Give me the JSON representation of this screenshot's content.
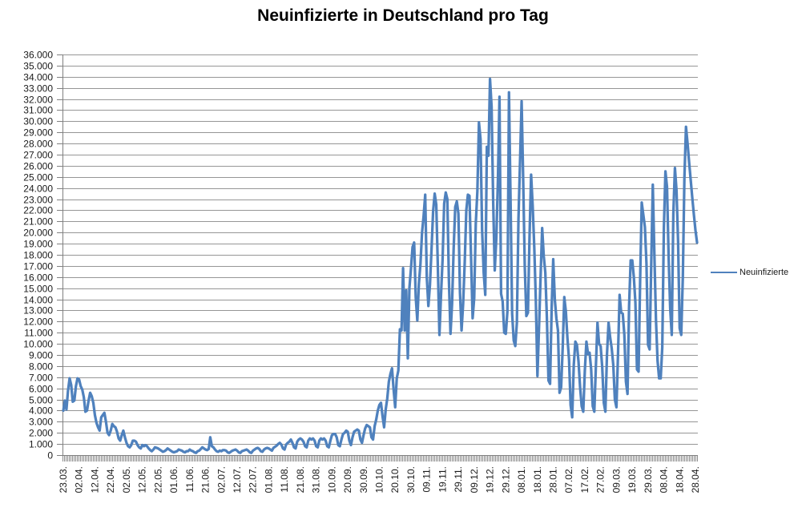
{
  "chart_data": {
    "type": "line",
    "title": "Neuinfizierte in Deutschland pro Tag",
    "xlabel": "",
    "ylabel": "",
    "ylim": [
      0,
      36000
    ],
    "y_gridline_step": 1000,
    "grid": true,
    "legend": {
      "position": "right",
      "entries": [
        "Neuinfizierte"
      ]
    },
    "y_tick_labels": [
      "36.000",
      "35.000",
      "34.000",
      "33.000",
      "32.000",
      "31.000",
      "30.000",
      "29.000",
      "28.000",
      "27.000",
      "26.000",
      "25.000",
      "24.000",
      "23.000",
      "22.000",
      "21.000",
      "20.000",
      "19.000",
      "18.000",
      "17.000",
      "16.000",
      "15.000",
      "14.000",
      "13.000",
      "12.000",
      "11.000",
      "10.000",
      "9.000",
      "8.000",
      "7.000",
      "6.000",
      "5.000",
      "4.000",
      "3.000",
      "2.000",
      "1.000",
      "0"
    ],
    "x_tick_labels": [
      "23.03.",
      "02.04.",
      "12.04.",
      "22.04.",
      "02.05.",
      "12.05.",
      "22.05.",
      "01.06.",
      "11.06.",
      "21.06.",
      "02.07.",
      "12.07.",
      "22.07.",
      "01.08.",
      "11.08.",
      "21.08.",
      "31.08.",
      "10.09.",
      "20.09.",
      "30.09.",
      "10.10.",
      "20.10.",
      "30.10.",
      "09.11.",
      "19.11.",
      "29.11.",
      "09.12.",
      "19.12.",
      "29.12.",
      "08.01.",
      "18.01.",
      "28.01.",
      "07.02.",
      "17.02.",
      "27.02.",
      "09.03.",
      "19.03.",
      "29.03.",
      "08.04.",
      "18.04.",
      "28.04."
    ],
    "x_tick_every_n_points": 10,
    "series": [
      {
        "name": "Neuinfizierte",
        "color": "#4F81BD",
        "values": [
          4000,
          4900,
          4100,
          5800,
          6900,
          6300,
          4800,
          4900,
          6200,
          6900,
          6800,
          6200,
          5900,
          5200,
          3900,
          4000,
          4900,
          5600,
          5300,
          4700,
          3600,
          2900,
          2500,
          2200,
          3400,
          3600,
          3800,
          3000,
          2000,
          1800,
          2200,
          2800,
          2600,
          2500,
          2100,
          1500,
          1300,
          1800,
          2200,
          1600,
          1100,
          800,
          700,
          900,
          1300,
          1300,
          1200,
          900,
          700,
          600,
          900,
          800,
          900,
          800,
          600,
          450,
          350,
          500,
          700,
          650,
          600,
          500,
          400,
          300,
          350,
          450,
          600,
          500,
          400,
          300,
          250,
          300,
          350,
          500,
          450,
          400,
          300,
          250,
          350,
          350,
          500,
          400,
          350,
          250,
          200,
          350,
          400,
          550,
          700,
          600,
          500,
          450,
          550,
          1600,
          800,
          700,
          500,
          350,
          300,
          400,
          350,
          450,
          450,
          400,
          250,
          200,
          300,
          400,
          450,
          500,
          400,
          250,
          200,
          350,
          400,
          450,
          500,
          400,
          250,
          200,
          400,
          500,
          600,
          650,
          550,
          350,
          300,
          500,
          600,
          650,
          600,
          500,
          400,
          650,
          750,
          850,
          1000,
          1100,
          950,
          600,
          500,
          950,
          1100,
          1200,
          1400,
          1100,
          700,
          600,
          1200,
          1400,
          1500,
          1400,
          1200,
          800,
          700,
          1300,
          1500,
          1400,
          1500,
          1300,
          800,
          700,
          1300,
          1500,
          1400,
          1500,
          1300,
          800,
          700,
          1300,
          1800,
          1900,
          1900,
          1600,
          900,
          800,
          1400,
          1900,
          2000,
          2200,
          2100,
          1300,
          900,
          1600,
          2100,
          2200,
          2300,
          2200,
          1400,
          1100,
          1800,
          2400,
          2700,
          2600,
          2500,
          1600,
          1400,
          2600,
          3200,
          4000,
          4500,
          4700,
          3500,
          2500,
          4100,
          5100,
          6600,
          7300,
          7800,
          5900,
          4300,
          6900,
          7600,
          11300,
          11200,
          16800,
          11200,
          14800,
          8700,
          15000,
          16800,
          18700,
          19100,
          14200,
          12100,
          15400,
          17200,
          20000,
          21500,
          23400,
          16000,
          13400,
          15300,
          18500,
          21900,
          23500,
          22500,
          16900,
          10800,
          14400,
          17600,
          22600,
          23600,
          23000,
          15700,
          10900,
          13600,
          18600,
          22300,
          22800,
          21700,
          14600,
          11200,
          13600,
          17300,
          22000,
          23400,
          23300,
          17800,
          12300,
          14100,
          20800,
          23700,
          29900,
          28400,
          20200,
          16400,
          14400,
          27700,
          26900,
          33800,
          31300,
          22800,
          16600,
          19500,
          24700,
          32200,
          14500,
          13800,
          11000,
          10900,
          12900,
          32600,
          22900,
          12700,
          10300,
          9800,
          11900,
          21200,
          26400,
          31800,
          24700,
          16900,
          12500,
          12800,
          19600,
          25200,
          22400,
          18700,
          13900,
          7100,
          11400,
          16000,
          20400,
          17900,
          16400,
          12300,
          6700,
          6400,
          13200,
          17600,
          14000,
          12300,
          11200,
          5600,
          6100,
          9700,
          14200,
          12900,
          10500,
          8600,
          4500,
          3400,
          8100,
          10200,
          9900,
          8400,
          6100,
          4400,
          3900,
          7600,
          10200,
          9100,
          9200,
          7700,
          4400,
          3900,
          8000,
          11900,
          10000,
          9800,
          7900,
          4700,
          3900,
          9000,
          11900,
          10600,
          9600,
          8100,
          5000,
          4300,
          9100,
          14400,
          12800,
          12700,
          10800,
          6600,
          5500,
          13400,
          17500,
          17500,
          16000,
          13700,
          7700,
          7500,
          15800,
          22700,
          21600,
          20500,
          17200,
          9900,
          9500,
          17100,
          24300,
          18100,
          12200,
          8500,
          6900,
          6900,
          9700,
          20400,
          25500,
          24100,
          17900,
          13200,
          10800,
          21700,
          25800,
          23800,
          19200,
          11400,
          10800,
          16000,
          24900,
          29500,
          28000,
          26300,
          24700,
          23100,
          21600,
          20200,
          19100
        ]
      }
    ]
  },
  "colors": {
    "series_line": "#4F81BD",
    "gridline": "#969696",
    "axis": "#808080",
    "text": "#1a1a1a",
    "background": "#ffffff"
  }
}
